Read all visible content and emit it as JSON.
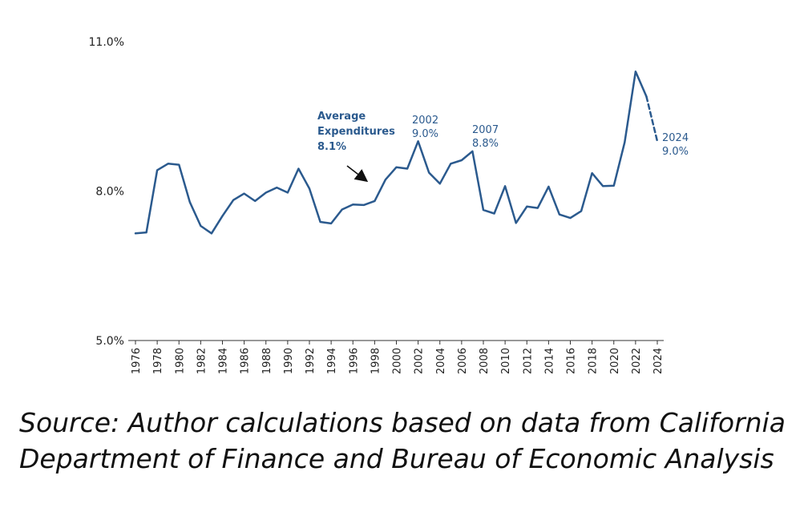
{
  "chart_data": {
    "type": "line",
    "title": "",
    "xlabel": "",
    "ylabel": "",
    "ylim": [
      5.0,
      11.0
    ],
    "yticks": [
      "5.0%",
      "8.0%",
      "11.0%"
    ],
    "ytick_values": [
      5.0,
      8.0,
      11.0
    ],
    "xlim": [
      1976,
      2024
    ],
    "xticks": [
      "1976",
      "1978",
      "1980",
      "1982",
      "1984",
      "1986",
      "1988",
      "1990",
      "1992",
      "1994",
      "1996",
      "1998",
      "2000",
      "2002",
      "2004",
      "2006",
      "2008",
      "2010",
      "2012",
      "2014",
      "2016",
      "2018",
      "2020",
      "2022",
      "2024"
    ],
    "grid": false,
    "color": "#2b5a8e",
    "series": [
      {
        "x": [
          1976,
          1977,
          1978,
          1979,
          1980,
          1981,
          1982,
          1983,
          1984,
          1985,
          1986,
          1987,
          1988,
          1989,
          1990,
          1991,
          1992,
          1993,
          1994,
          1995,
          1996,
          1997,
          1998,
          1999,
          2000,
          2001,
          2002,
          2003,
          2004,
          2005,
          2006,
          2007,
          2008,
          2009,
          2010,
          2011,
          2012,
          2013,
          2014,
          2015,
          2016,
          2017,
          2018,
          2019,
          2020,
          2021,
          2022,
          2023
        ],
        "y": [
          7.15,
          7.17,
          8.42,
          8.55,
          8.53,
          7.78,
          7.3,
          7.15,
          7.5,
          7.82,
          7.95,
          7.8,
          7.97,
          8.07,
          7.97,
          8.45,
          8.05,
          7.38,
          7.35,
          7.63,
          7.73,
          7.72,
          7.8,
          8.23,
          8.48,
          8.45,
          9.0,
          8.37,
          8.15,
          8.55,
          8.62,
          8.8,
          7.62,
          7.55,
          8.1,
          7.36,
          7.69,
          7.66,
          8.09,
          7.53,
          7.46,
          7.6,
          8.36,
          8.1,
          8.11,
          8.98,
          10.4,
          9.9
        ]
      },
      {
        "style": "dashed",
        "x": [
          2023,
          2024
        ],
        "y": [
          9.9,
          9.0
        ]
      }
    ],
    "annotations": [
      {
        "lines": [
          "Average",
          "Expenditures",
          "8.1%"
        ],
        "bold": true,
        "arrow_to": [
          1997.5,
          8.15
        ]
      },
      {
        "lines": [
          "2002",
          "9.0%"
        ],
        "x": 2002,
        "y": 9.0
      },
      {
        "lines": [
          "2007",
          "8.8%"
        ],
        "x": 2007,
        "y": 8.8
      },
      {
        "lines": [
          "2024",
          "9.0%"
        ],
        "x": 2024,
        "y": 9.0
      }
    ]
  },
  "source_text": "Source: Author calculations based on data from California Department of Finance and Bureau of Economic Analysis"
}
